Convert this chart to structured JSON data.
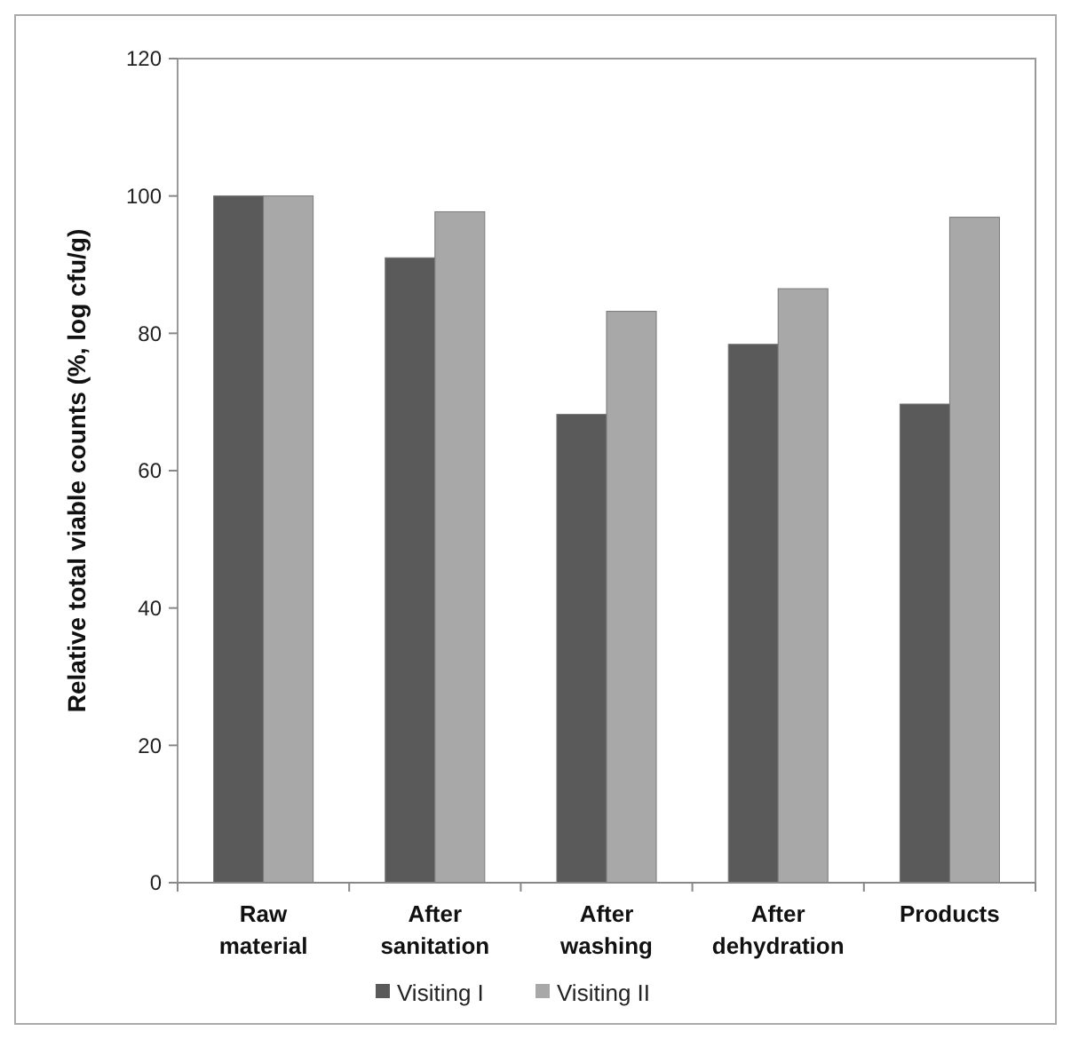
{
  "chart_data": {
    "type": "bar",
    "ylabel": "Relative total viable counts (%, log cfu/g)",
    "categories": [
      "Raw material",
      "After sanitation",
      "After washing",
      "After dehydration",
      "Products"
    ],
    "series": [
      {
        "name": "Visiting I",
        "color": "#5a5a5a",
        "values": [
          100,
          91,
          68.2,
          78.4,
          69.7
        ]
      },
      {
        "name": "Visiting II",
        "color": "#a8a8a8",
        "values": [
          100,
          97.7,
          83.2,
          86.5,
          96.9
        ]
      }
    ],
    "ylim": [
      0,
      120
    ],
    "yticks": [
      0,
      20,
      40,
      60,
      80,
      100,
      120
    ],
    "grid": false,
    "legend": "bottom"
  }
}
